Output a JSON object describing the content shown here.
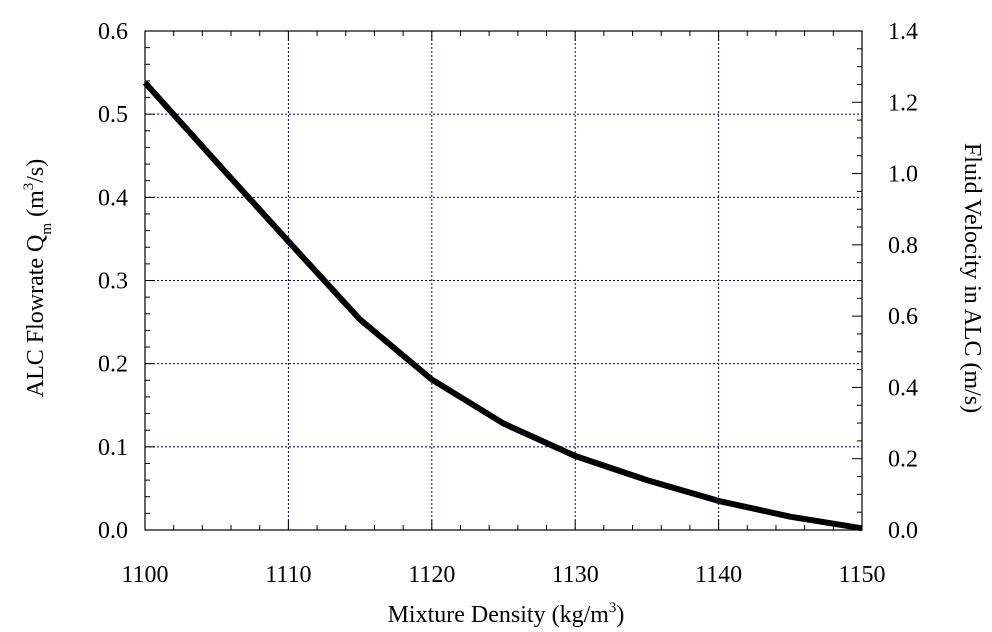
{
  "chart_data": {
    "type": "line",
    "x": [
      1100,
      1105,
      1110,
      1115,
      1120,
      1125,
      1130,
      1135,
      1140,
      1145,
      1150
    ],
    "series": [
      {
        "values": [
          0.538,
          0.442,
          0.347,
          0.253,
          0.181,
          0.128,
          0.089,
          0.06,
          0.035,
          0.016,
          0.002
        ]
      }
    ],
    "xlim": [
      1100,
      1150
    ],
    "ylim": [
      0,
      0.6
    ],
    "y2lim": [
      0,
      1.4
    ],
    "x_ticks": [
      "1100",
      "1110",
      "1120",
      "1130",
      "1140",
      "1150"
    ],
    "y_ticks": [
      "0.0",
      "0.1",
      "0.2",
      "0.3",
      "0.4",
      "0.5",
      "0.6"
    ],
    "y2_ticks": [
      "0.0",
      "0.2",
      "0.4",
      "0.6",
      "0.8",
      "1.0",
      "1.2",
      "1.4"
    ],
    "xlabel": {
      "text": "Mixture Density  (kg/m",
      "sup": "3",
      "tail": ")"
    },
    "ylabel": {
      "text": "ALC Flowrate Q",
      "sub": "m",
      "mid": "  (m",
      "sup": "3",
      "tail": "/s)"
    },
    "y2label": "Fluid Velocity in ALC  (m/s)",
    "grid": true,
    "colors": {
      "line": "#000000",
      "grid": "#00008b"
    }
  }
}
